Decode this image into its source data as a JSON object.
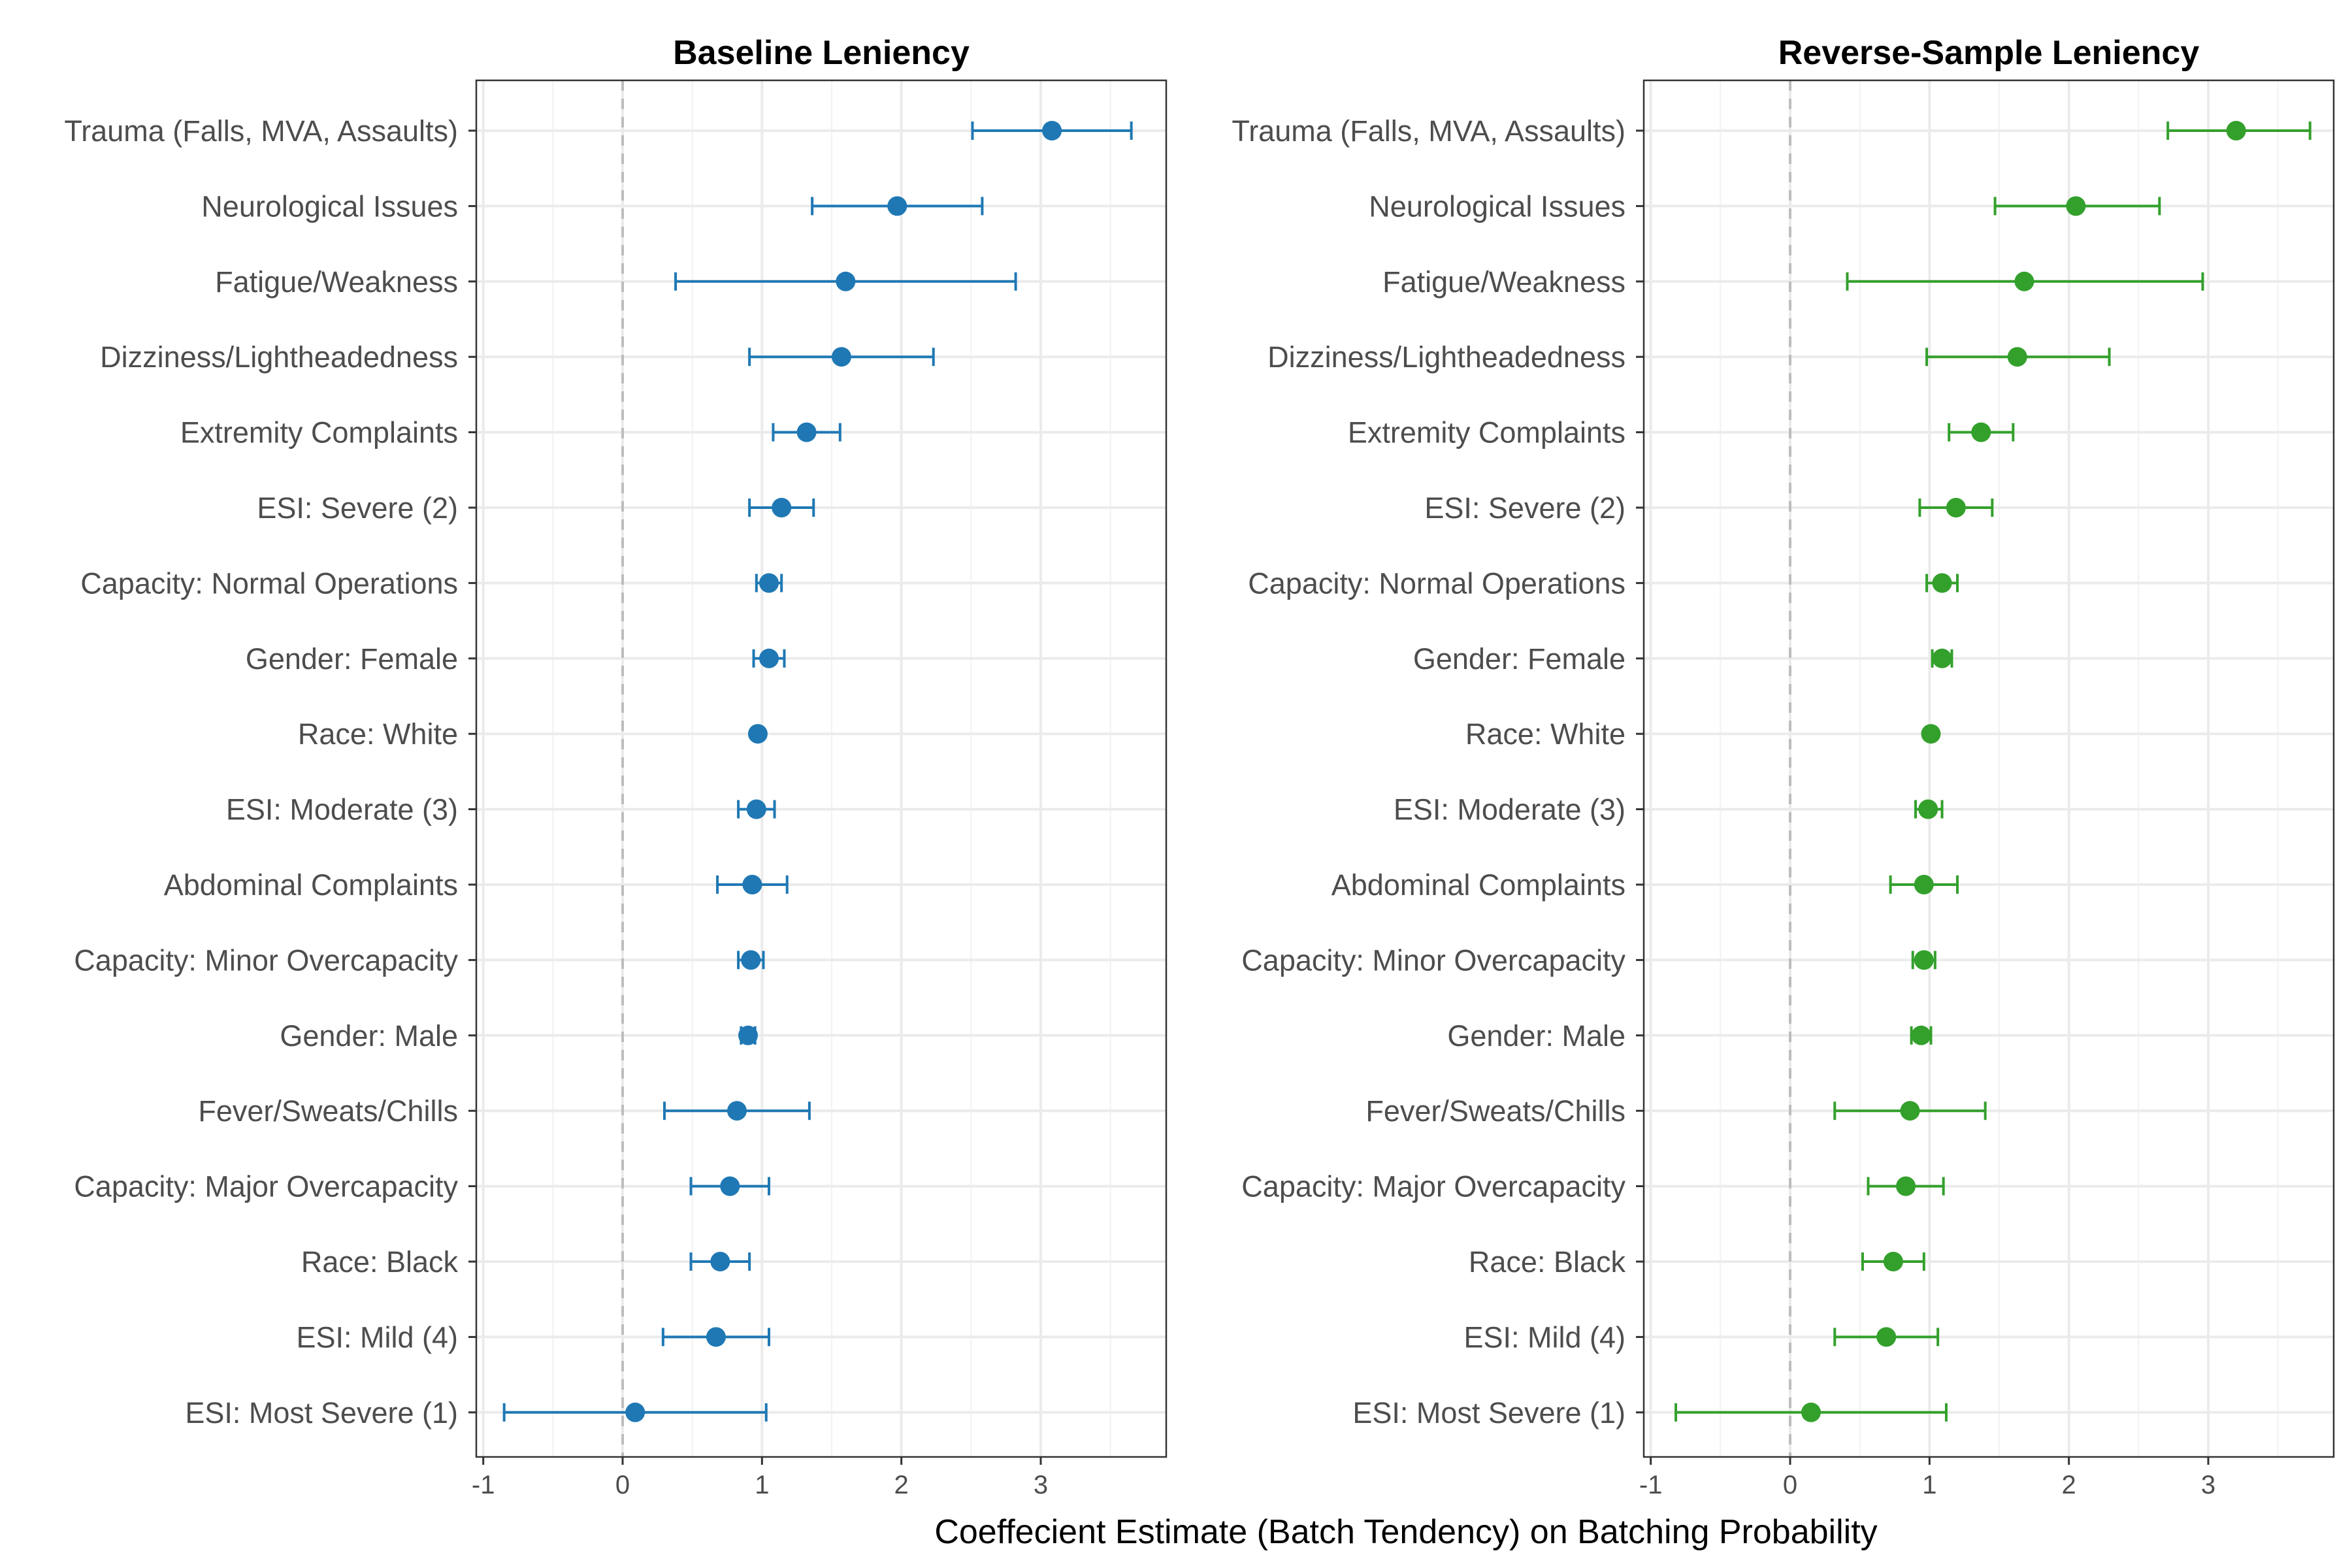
{
  "chart_data": {
    "type": "scatter",
    "subtype": "coefficient-plot-with-error-bars",
    "xlabel": "Coeffecient Estimate (Batch Tendency) on Batching Probability",
    "xlim": [
      -1.05,
      3.9
    ],
    "xticks": [
      -1,
      0,
      1,
      2,
      3
    ],
    "xtick_labels": [
      "-1",
      "0",
      "1",
      "2",
      "3"
    ],
    "reference_line_x": 0,
    "grid": true,
    "categories": [
      "Trauma (Falls, MVA, Assaults)",
      "Neurological Issues",
      "Fatigue/Weakness",
      "Dizziness/Lightheadedness",
      "Extremity Complaints",
      "ESI: Severe (2)",
      "Capacity: Normal Operations",
      "Gender: Female",
      "Race: White",
      "ESI: Moderate (3)",
      "Abdominal Complaints",
      "Capacity: Minor Overcapacity",
      "Gender: Male",
      "Fever/Sweats/Chills",
      "Capacity: Major Overcapacity",
      "Race: Black",
      "ESI: Mild (4)",
      "ESI: Most Severe (1)"
    ],
    "panels": [
      {
        "title": "Baseline Leniency",
        "color": "#1f78b4",
        "estimates": [
          3.08,
          1.97,
          1.6,
          1.57,
          1.32,
          1.14,
          1.05,
          1.05,
          0.97,
          0.96,
          0.93,
          0.92,
          0.9,
          0.82,
          0.77,
          0.7,
          0.67,
          0.09
        ],
        "lower": [
          2.51,
          1.36,
          0.38,
          0.91,
          1.08,
          0.91,
          0.96,
          0.94,
          0.97,
          0.83,
          0.68,
          0.83,
          0.85,
          0.3,
          0.49,
          0.49,
          0.29,
          -0.85
        ],
        "upper": [
          3.65,
          2.58,
          2.82,
          2.23,
          1.56,
          1.37,
          1.14,
          1.16,
          0.97,
          1.09,
          1.18,
          1.01,
          0.95,
          1.34,
          1.05,
          0.91,
          1.05,
          1.03
        ]
      },
      {
        "title": "Reverse-Sample Leniency",
        "color": "#33a02c",
        "estimates": [
          3.2,
          2.05,
          1.68,
          1.63,
          1.37,
          1.19,
          1.09,
          1.09,
          1.01,
          0.99,
          0.96,
          0.96,
          0.94,
          0.86,
          0.83,
          0.74,
          0.69,
          0.15
        ],
        "lower": [
          2.71,
          1.47,
          0.41,
          0.98,
          1.14,
          0.93,
          0.98,
          1.02,
          1.01,
          0.9,
          0.72,
          0.88,
          0.87,
          0.32,
          0.56,
          0.52,
          0.32,
          -0.82
        ],
        "upper": [
          3.73,
          2.65,
          2.96,
          2.29,
          1.6,
          1.45,
          1.2,
          1.16,
          1.01,
          1.09,
          1.2,
          1.04,
          1.01,
          1.4,
          1.1,
          0.96,
          1.06,
          1.12
        ]
      }
    ]
  }
}
